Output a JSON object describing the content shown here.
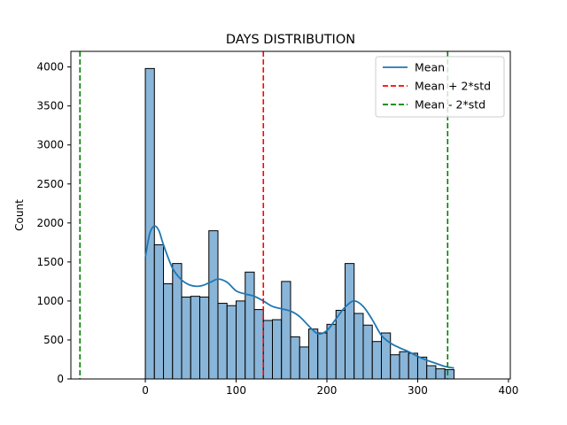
{
  "chart_data": {
    "type": "bar",
    "title": "DAYS DISTRIBUTION",
    "xlabel": "",
    "ylabel": "Count",
    "xlim": [
      -82,
      402
    ],
    "ylim": [
      0,
      4200
    ],
    "xticks": [
      0,
      100,
      200,
      300,
      400
    ],
    "yticks": [
      0,
      500,
      1000,
      1500,
      2000,
      2500,
      3000,
      3500,
      4000
    ],
    "grid": false,
    "legend_position": "top-right",
    "bin_width": 10,
    "bins": [
      {
        "x0": 0,
        "x1": 10,
        "count": 3980
      },
      {
        "x0": 10,
        "x1": 20,
        "count": 1720
      },
      {
        "x0": 20,
        "x1": 30,
        "count": 1220
      },
      {
        "x0": 30,
        "x1": 40,
        "count": 1480
      },
      {
        "x0": 40,
        "x1": 50,
        "count": 1050
      },
      {
        "x0": 50,
        "x1": 60,
        "count": 1060
      },
      {
        "x0": 60,
        "x1": 70,
        "count": 1050
      },
      {
        "x0": 70,
        "x1": 80,
        "count": 1900
      },
      {
        "x0": 80,
        "x1": 90,
        "count": 970
      },
      {
        "x0": 90,
        "x1": 100,
        "count": 940
      },
      {
        "x0": 100,
        "x1": 110,
        "count": 1000
      },
      {
        "x0": 110,
        "x1": 120,
        "count": 1370
      },
      {
        "x0": 120,
        "x1": 130,
        "count": 890
      },
      {
        "x0": 130,
        "x1": 140,
        "count": 750
      },
      {
        "x0": 140,
        "x1": 150,
        "count": 760
      },
      {
        "x0": 150,
        "x1": 160,
        "count": 1250
      },
      {
        "x0": 160,
        "x1": 170,
        "count": 540
      },
      {
        "x0": 170,
        "x1": 180,
        "count": 410
      },
      {
        "x0": 180,
        "x1": 190,
        "count": 640
      },
      {
        "x0": 190,
        "x1": 200,
        "count": 590
      },
      {
        "x0": 200,
        "x1": 210,
        "count": 700
      },
      {
        "x0": 210,
        "x1": 220,
        "count": 880
      },
      {
        "x0": 220,
        "x1": 230,
        "count": 1480
      },
      {
        "x0": 230,
        "x1": 240,
        "count": 840
      },
      {
        "x0": 240,
        "x1": 250,
        "count": 690
      },
      {
        "x0": 250,
        "x1": 260,
        "count": 480
      },
      {
        "x0": 260,
        "x1": 270,
        "count": 590
      },
      {
        "x0": 270,
        "x1": 280,
        "count": 310
      },
      {
        "x0": 280,
        "x1": 290,
        "count": 350
      },
      {
        "x0": 290,
        "x1": 300,
        "count": 330
      },
      {
        "x0": 300,
        "x1": 310,
        "count": 280
      },
      {
        "x0": 310,
        "x1": 320,
        "count": 170
      },
      {
        "x0": 320,
        "x1": 330,
        "count": 130
      },
      {
        "x0": 330,
        "x1": 340,
        "count": 120
      }
    ],
    "kde": {
      "x": [
        0,
        5,
        10,
        15,
        20,
        30,
        40,
        50,
        60,
        70,
        80,
        90,
        100,
        110,
        120,
        130,
        140,
        150,
        160,
        170,
        180,
        190,
        200,
        210,
        220,
        230,
        240,
        250,
        260,
        270,
        280,
        290,
        300,
        310,
        320,
        330,
        340
      ],
      "y": [
        1560,
        1870,
        1960,
        1900,
        1720,
        1420,
        1270,
        1200,
        1190,
        1230,
        1280,
        1240,
        1130,
        1090,
        1060,
        1000,
        930,
        900,
        870,
        800,
        680,
        580,
        620,
        770,
        920,
        1000,
        930,
        760,
        560,
        460,
        400,
        350,
        290,
        240,
        200,
        160,
        140
      ]
    },
    "vlines": [
      {
        "name": "Mean",
        "x": 130,
        "color": "#1f77b4",
        "style": "solid"
      },
      {
        "name": "Mean + 2*std",
        "x": 333,
        "color": "#d62728",
        "style": "dashed"
      },
      {
        "name": "Mean - 2*std",
        "x": -72,
        "color": "#2ca02c",
        "style": "dashed"
      }
    ],
    "colors": {
      "bar_fill": "#89b5d8",
      "bar_edge": "#000000",
      "kde": "#1f77b4",
      "mean_plus": "#ff0000",
      "mean_minus": "#008000"
    },
    "legend": [
      {
        "label": "Mean",
        "color": "#1f77b4",
        "style": "solid"
      },
      {
        "label": "Mean + 2*std",
        "color": "#ff0000",
        "style": "dashed"
      },
      {
        "label": "Mean - 2*std",
        "color": "#008000",
        "style": "dashed"
      }
    ]
  }
}
